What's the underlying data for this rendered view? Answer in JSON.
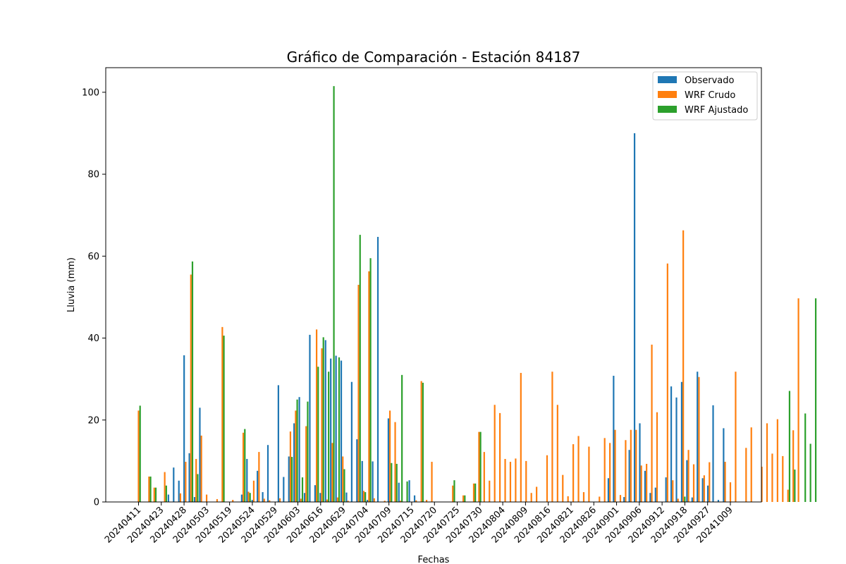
{
  "chart_data": {
    "type": "bar",
    "title": "Gráfico de Comparación - Estación 84187",
    "xlabel": "Fechas",
    "ylabel": "Lluvia (mm)",
    "ylim": [
      0,
      106
    ],
    "y_ticks": [
      0,
      20,
      40,
      60,
      80,
      100
    ],
    "grid": false,
    "legend_position": "top-right",
    "x_tick_labels": [
      "20240411",
      "20240423",
      "20240428",
      "20240503",
      "20240519",
      "20240524",
      "20240529",
      "20240603",
      "20240616",
      "20240629",
      "20240704",
      "20240709",
      "20240715",
      "20240720",
      "20240725",
      "20240730",
      "20240804",
      "20240809",
      "20240816",
      "20240821",
      "20240826",
      "20240901",
      "20240906",
      "20240912",
      "20240918",
      "20240927",
      "20241009"
    ],
    "series": [
      {
        "name": "Observado",
        "color": "#1f77b4",
        "values": [
          0,
          0,
          0,
          0,
          0,
          0,
          1.8,
          8.4,
          5.2,
          35.8,
          11.9,
          1.2,
          23,
          0,
          0,
          0,
          0,
          0,
          0,
          0,
          1.8,
          10.5,
          0.5,
          7.6,
          2.4,
          13.9,
          0,
          28.5,
          6.1,
          11.1,
          19.2,
          25.6,
          2.2,
          40.8,
          4.1,
          2.2,
          39.5,
          35,
          35.7,
          34.5,
          2.3,
          29.3,
          15.3,
          10,
          0.5,
          9.9,
          64.7,
          0,
          20.4,
          0,
          4.7,
          0,
          5.3,
          1.6,
          0,
          0,
          0,
          0,
          0,
          0,
          0,
          0,
          0,
          0,
          0,
          0,
          0,
          0,
          0,
          0,
          0,
          0,
          0,
          0,
          0,
          0,
          0,
          0,
          0,
          0,
          0,
          0,
          0,
          0,
          0,
          0,
          0,
          0,
          0,
          0,
          5.8,
          30.8,
          0,
          1.2,
          12.7,
          90,
          19.2,
          7.6,
          2.2,
          3.5,
          0,
          6,
          28.2,
          25.5,
          29.3,
          10.2,
          1.1,
          31.8,
          5.8,
          4,
          23.6,
          0.5,
          18,
          0
        ]
      },
      {
        "name": "WRF Crudo",
        "color": "#ff7f0e",
        "values": [
          22.3,
          0,
          6.2,
          3.5,
          0,
          7.3,
          0,
          0,
          2.1,
          9.8,
          55.5,
          10.5,
          16.2,
          1.8,
          0,
          0.7,
          42.7,
          0,
          0.5,
          0,
          16.9,
          2.5,
          5.2,
          12.2,
          0.8,
          0.4,
          0,
          0.9,
          0,
          17.2,
          22.3,
          0.8,
          18.5,
          0,
          42.1,
          37.5,
          0.6,
          14.4,
          1.1,
          11.1,
          0.3,
          0,
          53,
          2.7,
          56.3,
          0.9,
          0,
          0.3,
          22.3,
          19.5,
          0.3,
          0,
          0,
          0.4,
          29.5,
          0.5,
          9.8,
          0,
          0,
          0,
          4,
          0,
          1.6,
          0,
          4.5,
          17.1,
          12.2,
          5.2,
          23.7,
          21.7,
          10.5,
          9.8,
          10.6,
          31.5,
          10,
          2.2,
          3.7,
          0,
          11.4,
          31.8,
          23.7,
          6.6,
          1.4,
          14.1,
          16.1,
          2.4,
          13.5,
          0,
          1.3,
          15.6,
          14.4,
          17.6,
          1.7,
          15.1,
          17.6,
          17.6,
          8.9,
          9.3,
          38.4,
          21.9,
          0,
          58.2,
          5.3,
          0.8,
          66.3,
          12.7,
          9.2,
          30.5,
          6.5,
          9.7,
          0,
          0,
          9.8,
          4.8,
          31.8,
          0,
          13.2,
          18.2,
          0,
          8.6,
          19.2,
          11.8,
          20.2,
          11.2,
          3,
          17.5,
          49.7
        ]
      },
      {
        "name": "WRF Ajustado",
        "color": "#2ca02c",
        "values": [
          23.5,
          0,
          6.2,
          3.5,
          0,
          4,
          0,
          0,
          0,
          0,
          58.7,
          6.8,
          0,
          0,
          0,
          0,
          40.6,
          0,
          0,
          0,
          17.8,
          2.2,
          0,
          0,
          0,
          0,
          0,
          0,
          0,
          11,
          25,
          6,
          24.5,
          0,
          33,
          40.2,
          31.8,
          101.5,
          35.3,
          8,
          0,
          0,
          65.2,
          2.4,
          59.5,
          0,
          0,
          0,
          9.5,
          9.3,
          31,
          5,
          0,
          0,
          29.1,
          0,
          0,
          0,
          0,
          0,
          5.3,
          0,
          1.6,
          0,
          4.5,
          17.1,
          0,
          0,
          0,
          0,
          0,
          0,
          0,
          0,
          0,
          0,
          0,
          0,
          0,
          0,
          0,
          0,
          0,
          0,
          0,
          0,
          0,
          0,
          0,
          0,
          0,
          0,
          0,
          0,
          0,
          0,
          0,
          0,
          0,
          0,
          0,
          0,
          0,
          0,
          1.3,
          0,
          0,
          0,
          0,
          0,
          0,
          0,
          0,
          0,
          0,
          0,
          0,
          0,
          0,
          0,
          0,
          0,
          0,
          0,
          27.1,
          7.9,
          0,
          21.6,
          14.2,
          49.7
        ]
      }
    ]
  }
}
